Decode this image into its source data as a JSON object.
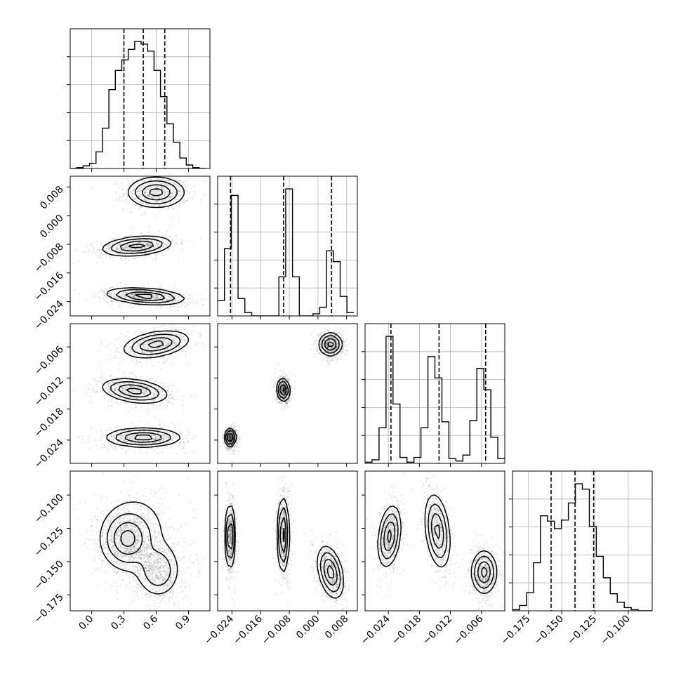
{
  "chart_data": {
    "type": "corner",
    "title": "",
    "parameters": [
      {
        "name": "",
        "range": [
          -0.2,
          1.1
        ],
        "ticks": [
          0.0,
          0.3,
          0.6,
          0.9
        ],
        "tick_labels": [
          "0.0",
          "0.3",
          "0.6",
          "0.9"
        ],
        "quantiles": [
          0.3,
          0.48,
          0.68
        ]
      },
      {
        "name": "",
        "range": [
          -0.028,
          0.011
        ],
        "ticks": [
          -0.024,
          -0.016,
          -0.008,
          0.0,
          0.008
        ],
        "tick_labels": [
          "−0.024",
          "−0.016",
          "−0.008",
          "0.000",
          "0.008"
        ],
        "quantiles": [
          -0.0244,
          -0.0096,
          0.0038
        ]
      },
      {
        "name": "",
        "range": [
          -0.0285,
          -0.0015
        ],
        "ticks": [
          -0.024,
          -0.018,
          -0.012,
          -0.006
        ],
        "tick_labels": [
          "−0.024",
          "−0.018",
          "−0.012",
          "−0.006"
        ],
        "quantiles": [
          -0.0235,
          -0.0142,
          -0.0052
        ]
      },
      {
        "name": "",
        "range": [
          -0.187,
          -0.082
        ],
        "ticks": [
          -0.175,
          -0.15,
          -0.125,
          -0.1
        ],
        "tick_labels": [
          "−0.175",
          "−0.150",
          "−0.125",
          "−0.100"
        ],
        "quantiles": [
          -0.158,
          -0.14,
          -0.126
        ]
      }
    ],
    "histograms": [
      {
        "param": 0,
        "bin_edges": [
          -0.2,
          -0.14,
          -0.08,
          -0.02,
          0.04,
          0.1,
          0.16,
          0.22,
          0.28,
          0.34,
          0.4,
          0.46,
          0.52,
          0.58,
          0.64,
          0.7,
          0.76,
          0.82,
          0.88,
          0.94,
          1.0,
          1.06
        ],
        "counts": [
          0,
          1,
          3,
          6,
          19,
          46,
          90,
          112,
          124,
          136,
          145,
          142,
          134,
          112,
          82,
          51,
          30,
          12,
          4,
          1,
          0
        ]
      },
      {
        "param": 1,
        "bin_edges": [
          -0.028,
          -0.0261,
          -0.0242,
          -0.0223,
          -0.0204,
          -0.0185,
          -0.0166,
          -0.0147,
          -0.0128,
          -0.0109,
          -0.009,
          -0.0071,
          -0.0052,
          -0.0033,
          -0.0014,
          0.0005,
          0.0024,
          0.0043,
          0.0062,
          0.0081,
          0.01
        ],
        "counts": [
          14,
          62,
          111,
          16,
          3,
          0,
          0,
          0,
          0,
          36,
          117,
          36,
          0,
          0,
          2,
          8,
          60,
          50,
          18,
          3
        ]
      },
      {
        "param": 2,
        "bin_edges": [
          -0.0285,
          -0.02715,
          -0.0258,
          -0.02445,
          -0.0231,
          -0.02175,
          -0.0204,
          -0.01905,
          -0.0177,
          -0.01635,
          -0.015,
          -0.01365,
          -0.0123,
          -0.01095,
          -0.0096,
          -0.00825,
          -0.0069,
          -0.00555,
          -0.0042,
          -0.00285,
          -0.0015
        ],
        "counts": [
          1,
          3,
          30,
          107,
          50,
          5,
          1,
          5,
          30,
          90,
          72,
          35,
          4,
          2,
          7,
          36,
          80,
          62,
          22,
          4
        ]
      },
      {
        "param": 3,
        "bin_edges": [
          -0.187,
          -0.18175,
          -0.1765,
          -0.17125,
          -0.166,
          -0.16075,
          -0.1555,
          -0.15025,
          -0.145,
          -0.13975,
          -0.1345,
          -0.12925,
          -0.124,
          -0.11875,
          -0.1135,
          -0.10825,
          -0.103,
          -0.09775,
          -0.0925,
          -0.08725,
          -0.082
        ],
        "counts": [
          1,
          5,
          17,
          45,
          89,
          84,
          77,
          85,
          101,
          119,
          114,
          79,
          51,
          31,
          16,
          8,
          3,
          1,
          0,
          0
        ]
      }
    ],
    "pairs": [
      {
        "x": 0,
        "y": 1,
        "modes": [
          {
            "mean": [
              0.6,
              0.0065
            ],
            "sd": [
              0.13,
              0.0021
            ],
            "weight": 0.33
          },
          {
            "mean": [
              0.42,
              -0.0085
            ],
            "sd": [
              0.16,
              0.0013
            ],
            "weight": 0.33,
            "slope": 0.0025
          },
          {
            "mean": [
              0.5,
              -0.0225
            ],
            "sd": [
              0.18,
              0.0011
            ],
            "weight": 0.34,
            "slope": -0.002
          }
        ]
      },
      {
        "x": 0,
        "y": 2,
        "modes": [
          {
            "mean": [
              0.6,
              -0.0055
            ],
            "sd": [
              0.15,
              0.0012
            ],
            "weight": 0.33,
            "slope": 0.003
          },
          {
            "mean": [
              0.4,
              -0.0145
            ],
            "sd": [
              0.15,
              0.0011
            ],
            "weight": 0.33,
            "slope": -0.0025
          },
          {
            "mean": [
              0.48,
              -0.0235
            ],
            "sd": [
              0.17,
              0.0009
            ],
            "weight": 0.34
          }
        ]
      },
      {
        "x": 0,
        "y": 3,
        "modes": [
          {
            "mean": [
              0.33,
              -0.133
            ],
            "sd": [
              0.12,
              0.011
            ],
            "weight": 0.55
          },
          {
            "mean": [
              0.62,
              -0.157
            ],
            "sd": [
              0.1,
              0.01
            ],
            "weight": 0.35
          },
          {
            "mean": [
              0.45,
              -0.125
            ],
            "sd": [
              0.22,
              0.022
            ],
            "weight": 0.1
          }
        ]
      },
      {
        "x": 1,
        "y": 2,
        "modes": [
          {
            "mean": [
              -0.0245,
              -0.0235
            ],
            "sd": [
              0.0008,
              0.0009
            ],
            "weight": 0.33
          },
          {
            "mean": [
              -0.0097,
              -0.0143
            ],
            "sd": [
              0.0009,
              0.0011
            ],
            "weight": 0.33,
            "slope": -0.1
          },
          {
            "mean": [
              0.0035,
              -0.0055
            ],
            "sd": [
              0.0016,
              0.0011
            ],
            "weight": 0.34
          }
        ]
      },
      {
        "x": 1,
        "y": 3,
        "modes": [
          {
            "mean": [
              -0.0245,
              -0.131
            ],
            "sd": [
              0.0007,
              0.012
            ],
            "weight": 0.33
          },
          {
            "mean": [
              -0.0097,
              -0.13
            ],
            "sd": [
              0.0008,
              0.014
            ],
            "weight": 0.33
          },
          {
            "mean": [
              0.0035,
              -0.158
            ],
            "sd": [
              0.0018,
              0.009
            ],
            "weight": 0.34,
            "slope": -2.0
          }
        ]
      },
      {
        "x": 2,
        "y": 3,
        "modes": [
          {
            "mean": [
              -0.0238,
              -0.131
            ],
            "sd": [
              0.0011,
              0.011
            ],
            "weight": 0.33,
            "slope": 3.0
          },
          {
            "mean": [
              -0.0145,
              -0.127
            ],
            "sd": [
              0.0012,
              0.013
            ],
            "weight": 0.33,
            "slope": -3.5
          },
          {
            "mean": [
              -0.0055,
              -0.158
            ],
            "sd": [
              0.0012,
              0.008
            ],
            "weight": 0.34
          }
        ]
      }
    ],
    "contour_levels": [
      0.5,
      1.0,
      1.5,
      2.0
    ],
    "quantile_lines": "dashed",
    "grid": true,
    "legend": "none"
  }
}
